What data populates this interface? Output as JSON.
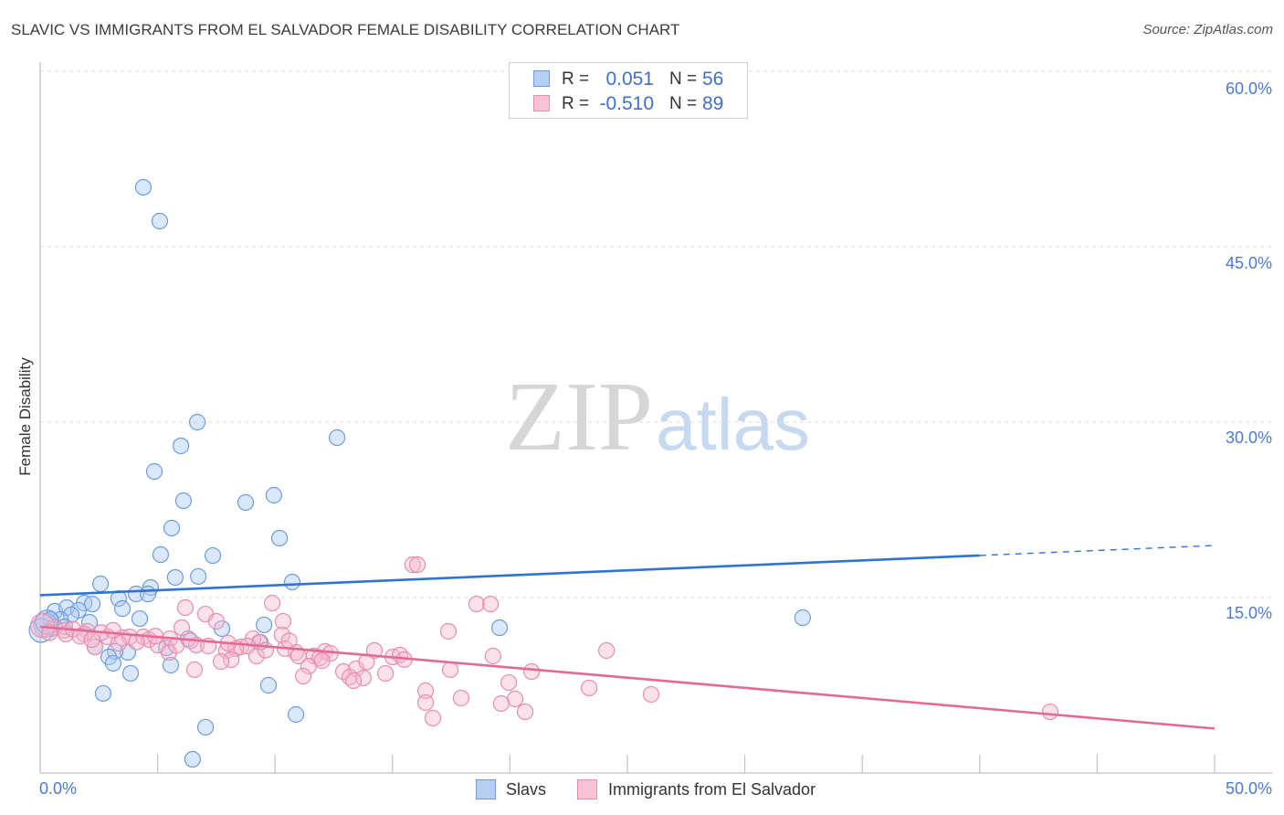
{
  "source": "Source: ZipAtlas.com",
  "watermark": {
    "part1": "ZIP",
    "part2": "atlas"
  },
  "legend": {
    "rows": [
      {
        "r_label": "R =",
        "r_value": "0.051",
        "n_label": "N =",
        "n_value": "56"
      },
      {
        "r_label": "R =",
        "r_value": "-0.510",
        "n_label": "N =",
        "n_value": "89"
      }
    ]
  },
  "colors": {
    "tick_label": "#4a7bd0",
    "legend_value": "#3b6fd0",
    "slavs": "#6c9ce0",
    "salvador": "#e98db0"
  },
  "chart_data": {
    "type": "scatter",
    "title": "SLAVIC VS IMMIGRANTS FROM EL SALVADOR FEMALE DISABILITY CORRELATION CHART",
    "xlabel": "",
    "ylabel": "Female Disability",
    "xlim": [
      0,
      50
    ],
    "ylim": [
      0,
      60
    ],
    "grid": true,
    "x_ticks": [
      0,
      5,
      10,
      15,
      20,
      25,
      30,
      35,
      40,
      45,
      50
    ],
    "y_ticks": [
      0,
      15,
      30,
      45,
      60
    ],
    "x_tick_labels": [
      "0.0%",
      "50.0%"
    ],
    "y_tick_labels": [
      "15.0%",
      "30.0%",
      "45.0%",
      "60.0%"
    ],
    "series": [
      {
        "name": "Slavs",
        "color": "#6c9ce0",
        "fill": "#a9c8f2",
        "r": 0.051,
        "n": 56,
        "points": [
          [
            4.39,
            50.08
          ],
          [
            5.09,
            47.19
          ],
          [
            6.69,
            30.0
          ],
          [
            12.64,
            28.67
          ],
          [
            5.99,
            27.97
          ],
          [
            4.86,
            25.78
          ],
          [
            9.95,
            23.75
          ],
          [
            6.1,
            23.28
          ],
          [
            8.75,
            23.13
          ],
          [
            5.6,
            20.94
          ],
          [
            10.19,
            20.08
          ],
          [
            5.13,
            18.67
          ],
          [
            7.35,
            18.59
          ],
          [
            5.75,
            16.72
          ],
          [
            6.73,
            16.8
          ],
          [
            10.73,
            16.33
          ],
          [
            2.57,
            16.17
          ],
          [
            4.7,
            15.86
          ],
          [
            4.08,
            15.31
          ],
          [
            3.34,
            14.92
          ],
          [
            4.59,
            15.31
          ],
          [
            1.87,
            14.53
          ],
          [
            2.22,
            14.45
          ],
          [
            3.5,
            14.06
          ],
          [
            0.62,
            13.83
          ],
          [
            1.13,
            14.14
          ],
          [
            1.63,
            13.91
          ],
          [
            1.32,
            13.52
          ],
          [
            0.86,
            13.13
          ],
          [
            0.43,
            13.13
          ],
          [
            0.23,
            12.66
          ],
          [
            0.47,
            12.34
          ],
          [
            0.04,
            12.19
          ],
          [
            4.24,
            13.2
          ],
          [
            2.1,
            12.89
          ],
          [
            9.53,
            12.66
          ],
          [
            7.74,
            12.34
          ],
          [
            19.56,
            12.42
          ],
          [
            32.46,
            13.28
          ],
          [
            6.3,
            11.48
          ],
          [
            9.37,
            11.17
          ],
          [
            2.33,
            10.78
          ],
          [
            5.37,
            10.7
          ],
          [
            3.73,
            10.31
          ],
          [
            3.19,
            10.39
          ],
          [
            2.92,
            9.92
          ],
          [
            3.11,
            9.38
          ],
          [
            5.56,
            9.22
          ],
          [
            3.85,
            8.52
          ],
          [
            9.72,
            7.5
          ],
          [
            2.68,
            6.8
          ],
          [
            10.89,
            5.0
          ],
          [
            7.04,
            3.91
          ],
          [
            6.49,
            1.17
          ],
          [
            0.3,
            12.9
          ],
          [
            1.05,
            12.5
          ]
        ]
      },
      {
        "name": "Immigrants from El Salvador",
        "color": "#e98db0",
        "fill": "#f5b8cd",
        "r": -0.51,
        "n": 89,
        "points": [
          [
            15.86,
            17.81
          ],
          [
            16.06,
            17.81
          ],
          [
            9.88,
            14.53
          ],
          [
            18.58,
            14.45
          ],
          [
            19.17,
            14.45
          ],
          [
            6.18,
            14.14
          ],
          [
            7.04,
            13.59
          ],
          [
            7.5,
            12.97
          ],
          [
            10.34,
            12.97
          ],
          [
            6.03,
            12.42
          ],
          [
            17.38,
            12.11
          ],
          [
            0.62,
            12.42
          ],
          [
            1.01,
            12.19
          ],
          [
            2.02,
            12.11
          ],
          [
            1.87,
            11.88
          ],
          [
            1.09,
            11.88
          ],
          [
            2.88,
            11.64
          ],
          [
            3.5,
            11.56
          ],
          [
            3.81,
            11.64
          ],
          [
            4.39,
            11.64
          ],
          [
            4.63,
            11.41
          ],
          [
            5.52,
            11.48
          ],
          [
            9.06,
            11.48
          ],
          [
            10.3,
            11.8
          ],
          [
            9.33,
            11.17
          ],
          [
            6.65,
            10.94
          ],
          [
            5.01,
            10.94
          ],
          [
            3.34,
            11.09
          ],
          [
            2.33,
            10.78
          ],
          [
            7.16,
            10.86
          ],
          [
            8.55,
            10.78
          ],
          [
            8.83,
            10.86
          ],
          [
            7.93,
            10.47
          ],
          [
            8.32,
            10.63
          ],
          [
            10.89,
            10.31
          ],
          [
            10.42,
            10.63
          ],
          [
            14.23,
            10.47
          ],
          [
            24.11,
            10.47
          ],
          [
            12.13,
            10.39
          ],
          [
            12.36,
            10.23
          ],
          [
            11.66,
            10.0
          ],
          [
            11.9,
            9.84
          ],
          [
            9.21,
            10.0
          ],
          [
            8.13,
            9.69
          ],
          [
            7.7,
            9.53
          ],
          [
            15.01,
            9.92
          ],
          [
            15.32,
            10.08
          ],
          [
            19.28,
            10.0
          ],
          [
            5.48,
            10.31
          ],
          [
            11.43,
            9.14
          ],
          [
            6.57,
            8.83
          ],
          [
            17.46,
            8.83
          ],
          [
            12.91,
            8.67
          ],
          [
            13.45,
            8.91
          ],
          [
            20.92,
            8.67
          ],
          [
            11.2,
            8.28
          ],
          [
            14.7,
            8.52
          ],
          [
            13.18,
            8.2
          ],
          [
            13.76,
            8.13
          ],
          [
            13.34,
            7.89
          ],
          [
            19.95,
            7.73
          ],
          [
            23.37,
            7.27
          ],
          [
            16.41,
            7.03
          ],
          [
            17.92,
            6.41
          ],
          [
            20.22,
            6.33
          ],
          [
            26.01,
            6.72
          ],
          [
            16.41,
            6.02
          ],
          [
            19.63,
            5.94
          ],
          [
            20.65,
            5.23
          ],
          [
            16.72,
            4.69
          ],
          [
            43.0,
            5.23
          ],
          [
            0.1,
            12.6
          ],
          [
            0.4,
            12.0
          ],
          [
            1.4,
            12.3
          ],
          [
            1.7,
            11.7
          ],
          [
            2.6,
            12.0
          ],
          [
            3.1,
            12.2
          ],
          [
            4.1,
            11.2
          ],
          [
            4.9,
            11.7
          ],
          [
            5.8,
            10.9
          ],
          [
            6.4,
            11.3
          ],
          [
            8.0,
            11.1
          ],
          [
            9.6,
            10.5
          ],
          [
            10.6,
            11.3
          ],
          [
            12.0,
            9.6
          ],
          [
            13.9,
            9.5
          ],
          [
            15.5,
            9.7
          ],
          [
            11.0,
            10.0
          ],
          [
            2.2,
            11.4
          ]
        ]
      }
    ],
    "trendlines": [
      {
        "series_index": 0,
        "color": "#2f73d6",
        "segments": [
          {
            "from": [
              0,
              15.2
            ],
            "to": [
              40,
              18.6
            ],
            "dashed": false
          },
          {
            "from": [
              40,
              18.6
            ],
            "to": [
              50,
              19.45
            ],
            "dashed": true
          }
        ]
      },
      {
        "series_index": 1,
        "color": "#e36a94",
        "segments": [
          {
            "from": [
              0,
              12.5
            ],
            "to": [
              50,
              3.8
            ],
            "dashed": false
          }
        ]
      }
    ]
  }
}
